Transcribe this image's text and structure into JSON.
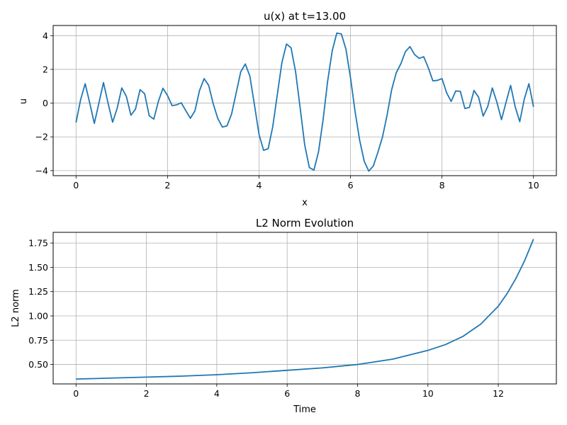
{
  "chart_data": [
    {
      "type": "line",
      "title": "u(x) at t=13.00",
      "xlabel": "x",
      "ylabel": "u",
      "xlim": [
        -0.5,
        10.5
      ],
      "ylim": [
        -4.3,
        4.6
      ],
      "xticks": [
        0,
        2,
        4,
        6,
        8,
        10
      ],
      "yticks": [
        -4,
        -2,
        0,
        2,
        4
      ],
      "grid": true,
      "color": "#1f77b4",
      "x": [
        0.0,
        0.1,
        0.2,
        0.3,
        0.4,
        0.5,
        0.6,
        0.7,
        0.8,
        0.9,
        1.0,
        1.1,
        1.2,
        1.3,
        1.4,
        1.5,
        1.6,
        1.7,
        1.8,
        1.9,
        2.0,
        2.1,
        2.2,
        2.3,
        2.4,
        2.5,
        2.6,
        2.7,
        2.8,
        2.9,
        3.0,
        3.1,
        3.2,
        3.3,
        3.4,
        3.5,
        3.6,
        3.7,
        3.8,
        3.9,
        4.0,
        4.1,
        4.2,
        4.3,
        4.4,
        4.5,
        4.6,
        4.7,
        4.8,
        4.9,
        5.0,
        5.1,
        5.2,
        5.3,
        5.4,
        5.5,
        5.6,
        5.7,
        5.8,
        5.9,
        6.0,
        6.1,
        6.2,
        6.3,
        6.4,
        6.5,
        6.6,
        6.7,
        6.8,
        6.9,
        7.0,
        7.1,
        7.2,
        7.3,
        7.4,
        7.5,
        7.6,
        7.7,
        7.8,
        7.9,
        8.0,
        8.1,
        8.2,
        8.3,
        8.4,
        8.5,
        8.6,
        8.7,
        8.8,
        8.9,
        9.0,
        9.1,
        9.2,
        9.3,
        9.4,
        9.5,
        9.6,
        9.7,
        9.8,
        9.9,
        10.0
      ],
      "y": [
        -1.15,
        0.2,
        1.15,
        0.0,
        -1.2,
        0.0,
        1.22,
        0.0,
        -1.13,
        -0.3,
        0.9,
        0.4,
        -0.72,
        -0.35,
        0.8,
        0.55,
        -0.75,
        -0.95,
        0.1,
        0.88,
        0.45,
        -0.15,
        -0.1,
        0.02,
        -0.45,
        -0.9,
        -0.45,
        0.75,
        1.45,
        1.05,
        -0.05,
        -0.92,
        -1.42,
        -1.35,
        -0.65,
        0.6,
        1.85,
        2.32,
        1.6,
        -0.1,
        -1.85,
        -2.8,
        -2.7,
        -1.4,
        0.5,
        2.4,
        3.5,
        3.28,
        1.85,
        -0.3,
        -2.5,
        -3.82,
        -3.97,
        -2.9,
        -1.0,
        1.3,
        3.1,
        4.15,
        4.1,
        3.2,
        1.5,
        -0.5,
        -2.2,
        -3.45,
        -4.03,
        -3.72,
        -2.9,
        -2.0,
        -0.7,
        0.8,
        1.8,
        2.33,
        3.05,
        3.35,
        2.88,
        2.65,
        2.75,
        2.1,
        1.32,
        1.35,
        1.45,
        0.62,
        0.1,
        0.72,
        0.7,
        -0.32,
        -0.25,
        0.75,
        0.35,
        -0.77,
        -0.2,
        0.9,
        0.05,
        -0.98,
        0.05,
        1.05,
        -0.22,
        -1.1,
        0.25,
        1.15,
        -0.22
      ]
    },
    {
      "type": "line",
      "title": "L2 Norm Evolution",
      "xlabel": "Time",
      "ylabel": "L2 norm",
      "xlim": [
        -0.65,
        13.65
      ],
      "ylim": [
        0.3,
        1.86
      ],
      "xticks": [
        0,
        2,
        4,
        6,
        8,
        10,
        12
      ],
      "yticks": [
        0.5,
        0.75,
        1.0,
        1.25,
        1.5,
        1.75
      ],
      "yticklabels": [
        "0.50",
        "0.75",
        "1.00",
        "1.25",
        "1.50",
        "1.75"
      ],
      "grid": true,
      "color": "#1f77b4",
      "x": [
        0,
        1,
        2,
        3,
        4,
        5,
        6,
        7,
        8,
        9,
        10,
        10.5,
        11,
        11.5,
        12,
        12.25,
        12.5,
        12.75,
        13
      ],
      "y": [
        0.35,
        0.36,
        0.37,
        0.38,
        0.395,
        0.415,
        0.44,
        0.465,
        0.5,
        0.555,
        0.645,
        0.705,
        0.79,
        0.915,
        1.1,
        1.23,
        1.385,
        1.57,
        1.79
      ]
    }
  ]
}
